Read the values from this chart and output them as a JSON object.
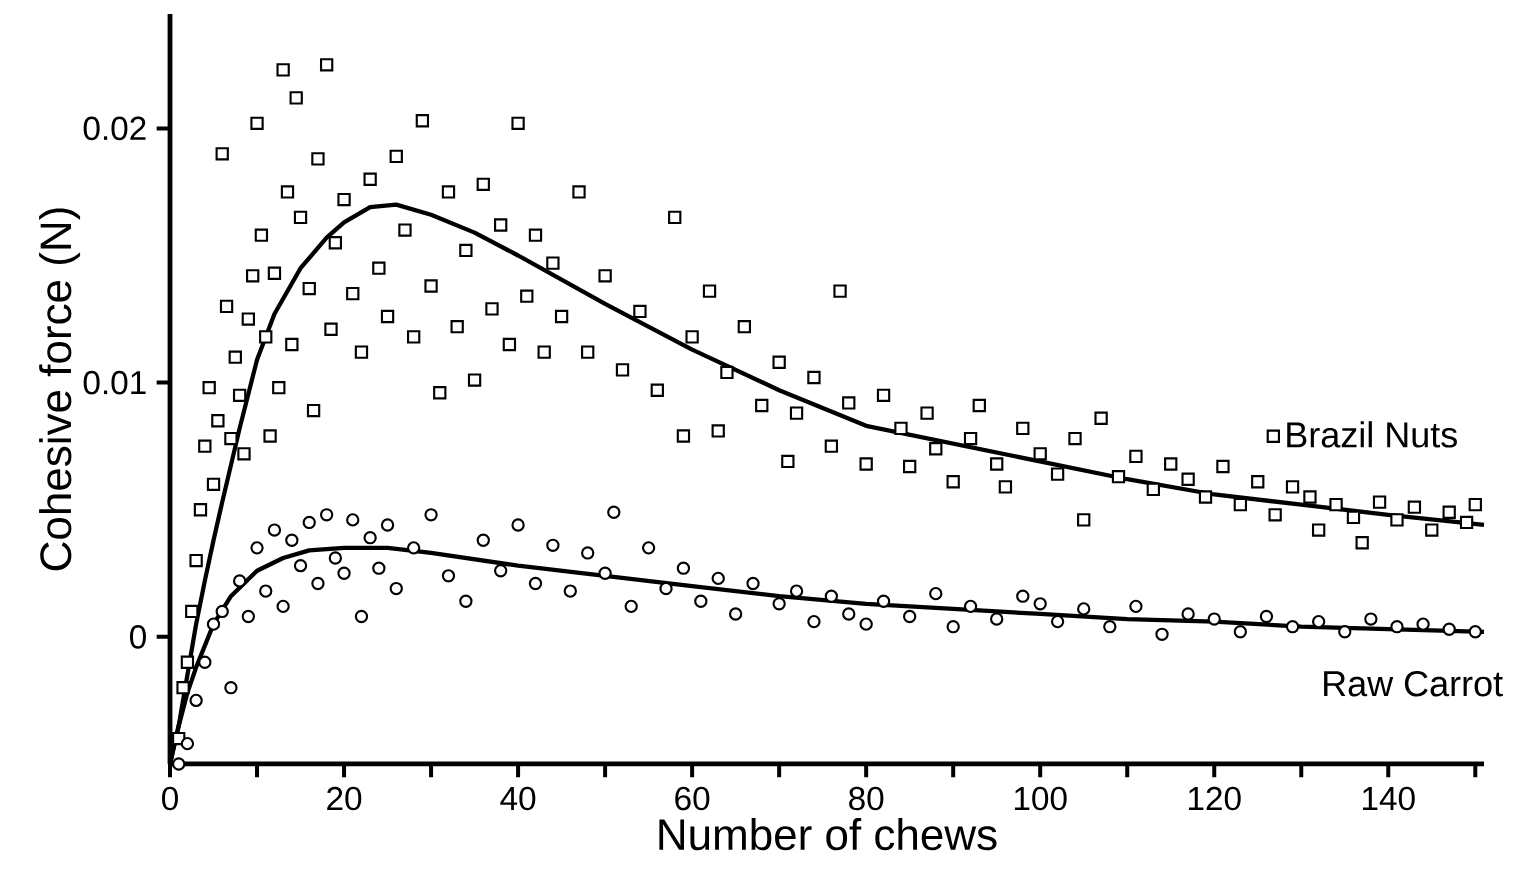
{
  "chart_data": {
    "type": "scatter",
    "xlabel": "Number of chews",
    "ylabel": "Cohesive force (N)",
    "xlim": [
      0,
      151
    ],
    "ylim": [
      -0.005,
      0.0245
    ],
    "xticks": [
      0,
      {
        "value": 10,
        "label": null
      },
      20,
      {
        "value": 30,
        "label": null
      },
      40,
      {
        "value": 50,
        "label": null
      },
      60,
      {
        "value": 70,
        "label": null
      },
      80,
      {
        "value": 90,
        "label": null
      },
      100,
      {
        "value": 110,
        "label": null
      },
      120,
      {
        "value": 130,
        "label": null
      },
      140,
      {
        "value": 150,
        "label": null
      }
    ],
    "yticks": [
      0,
      0.01,
      0.02
    ],
    "legend": "right",
    "series": [
      {
        "name": "Brazil Nuts",
        "marker": "square",
        "color": "#000000",
        "x": [
          1,
          1.5,
          2,
          2.5,
          3,
          3.5,
          4,
          4.5,
          5,
          5.5,
          6,
          6.5,
          7,
          7.5,
          8,
          8.5,
          9,
          9.5,
          10,
          10.5,
          11,
          11.5,
          12,
          12.5,
          13,
          13.5,
          14,
          14.5,
          15,
          16,
          16.5,
          17,
          18,
          18.5,
          19,
          20,
          21,
          22,
          23,
          24,
          25,
          26,
          27,
          28,
          29,
          30,
          31,
          32,
          33,
          34,
          35,
          36,
          37,
          38,
          39,
          40,
          41,
          42,
          43,
          44,
          45,
          47,
          48,
          50,
          52,
          54,
          56,
          58,
          59,
          60,
          62,
          63,
          64,
          66,
          68,
          70,
          71,
          72,
          74,
          76,
          77,
          78,
          80,
          82,
          84,
          85,
          87,
          88,
          90,
          92,
          93,
          95,
          96,
          98,
          100,
          102,
          104,
          105,
          107,
          109,
          111,
          113,
          115,
          117,
          119,
          121,
          123,
          125,
          127,
          129,
          131,
          132,
          134,
          136,
          137,
          139,
          141,
          143,
          145,
          147,
          149,
          150
        ],
        "values": [
          -0.004,
          -0.002,
          -0.001,
          0.001,
          0.003,
          0.005,
          0.0075,
          0.0098,
          0.006,
          0.0085,
          0.019,
          0.013,
          0.0078,
          0.011,
          0.0095,
          0.0072,
          0.0125,
          0.0142,
          0.0202,
          0.0158,
          0.0118,
          0.0079,
          0.0143,
          0.0098,
          0.0223,
          0.0175,
          0.0115,
          0.0212,
          0.0165,
          0.0137,
          0.0089,
          0.0188,
          0.0225,
          0.0121,
          0.0155,
          0.0172,
          0.0135,
          0.0112,
          0.018,
          0.0145,
          0.0126,
          0.0189,
          0.016,
          0.0118,
          0.0203,
          0.0138,
          0.0096,
          0.0175,
          0.0122,
          0.0152,
          0.0101,
          0.0178,
          0.0129,
          0.0162,
          0.0115,
          0.0202,
          0.0134,
          0.0158,
          0.0112,
          0.0147,
          0.0126,
          0.0175,
          0.0112,
          0.0142,
          0.0105,
          0.0128,
          0.0097,
          0.0165,
          0.0079,
          0.0118,
          0.0136,
          0.0081,
          0.0104,
          0.0122,
          0.0091,
          0.0108,
          0.0069,
          0.0088,
          0.0102,
          0.0075,
          0.0136,
          0.0092,
          0.0068,
          0.0095,
          0.0082,
          0.0067,
          0.0088,
          0.0074,
          0.0061,
          0.0078,
          0.0091,
          0.0068,
          0.0059,
          0.0082,
          0.0072,
          0.0064,
          0.0078,
          0.0046,
          0.0086,
          0.0063,
          0.0071,
          0.0058,
          0.0068,
          0.0062,
          0.0055,
          0.0067,
          0.0052,
          0.0061,
          0.0048,
          0.0059,
          0.0055,
          0.0042,
          0.0052,
          0.0047,
          0.0037,
          0.0053,
          0.0046,
          0.0051,
          0.0042,
          0.0049,
          0.0045,
          0.0052
        ]
      },
      {
        "name": "Raw Carrot",
        "marker": "circle",
        "color": "#000000",
        "x": [
          1,
          2,
          3,
          4,
          5,
          6,
          7,
          8,
          9,
          10,
          11,
          12,
          13,
          14,
          15,
          16,
          17,
          18,
          19,
          20,
          21,
          22,
          23,
          24,
          25,
          26,
          28,
          30,
          32,
          34,
          36,
          38,
          40,
          42,
          44,
          46,
          48,
          50,
          51,
          53,
          55,
          57,
          59,
          61,
          63,
          65,
          67,
          70,
          72,
          74,
          76,
          78,
          80,
          82,
          85,
          88,
          90,
          92,
          95,
          98,
          100,
          102,
          105,
          108,
          111,
          114,
          117,
          120,
          123,
          126,
          129,
          132,
          135,
          138,
          141,
          144,
          147,
          150
        ],
        "values": [
          -0.005,
          -0.0042,
          -0.0025,
          -0.001,
          0.0005,
          0.001,
          -0.002,
          0.0022,
          0.0008,
          0.0035,
          0.0018,
          0.0042,
          0.0012,
          0.0038,
          0.0028,
          0.0045,
          0.0021,
          0.0048,
          0.0031,
          0.0025,
          0.0046,
          0.0008,
          0.0039,
          0.0027,
          0.0044,
          0.0019,
          0.0035,
          0.0048,
          0.0024,
          0.0014,
          0.0038,
          0.0026,
          0.0044,
          0.0021,
          0.0036,
          0.0018,
          0.0033,
          0.0025,
          0.0049,
          0.0012,
          0.0035,
          0.0019,
          0.0027,
          0.0014,
          0.0023,
          0.0009,
          0.0021,
          0.0013,
          0.0018,
          0.0006,
          0.0016,
          0.0009,
          0.0005,
          0.0014,
          0.0008,
          0.0017,
          0.0004,
          0.0012,
          0.0007,
          0.0016,
          0.0013,
          0.0006,
          0.0011,
          0.0004,
          0.0012,
          0.0001,
          0.0009,
          0.0007,
          0.0002,
          0.0008,
          0.0004,
          0.0006,
          0.0002,
          0.0007,
          0.0004,
          0.0005,
          0.0003,
          0.0002
        ]
      },
      {
        "type": "line",
        "marker": "none",
        "color": "#000000",
        "x": [
          0,
          1,
          2,
          3,
          4,
          5,
          6,
          8,
          10,
          12,
          15,
          18,
          20,
          23,
          26,
          30,
          35,
          40,
          50,
          60,
          70,
          80,
          90,
          100,
          110,
          120,
          130,
          140,
          151
        ],
        "values": [
          -0.005,
          -0.0035,
          -0.0015,
          0.0005,
          0.0022,
          0.0038,
          0.0053,
          0.0082,
          0.0109,
          0.0127,
          0.0145,
          0.0157,
          0.0163,
          0.0169,
          0.017,
          0.0166,
          0.0159,
          0.015,
          0.0131,
          0.0113,
          0.0097,
          0.0083,
          0.0076,
          0.0069,
          0.0062,
          0.0056,
          0.0052,
          0.0048,
          0.0044
        ]
      },
      {
        "type": "line",
        "marker": "none",
        "color": "#000000",
        "x": [
          0,
          1,
          2,
          3,
          5,
          7,
          10,
          13,
          16,
          20,
          25,
          30,
          40,
          50,
          60,
          70,
          80,
          90,
          100,
          110,
          120,
          130,
          140,
          151
        ],
        "values": [
          -0.005,
          -0.0035,
          -0.0022,
          -0.0012,
          0.0005,
          0.0016,
          0.0026,
          0.0031,
          0.0034,
          0.0035,
          0.0035,
          0.0033,
          0.0028,
          0.0024,
          0.002,
          0.0016,
          0.0013,
          0.0011,
          0.0009,
          0.0007,
          0.0006,
          0.0004,
          0.0003,
          0.0002
        ]
      }
    ]
  }
}
